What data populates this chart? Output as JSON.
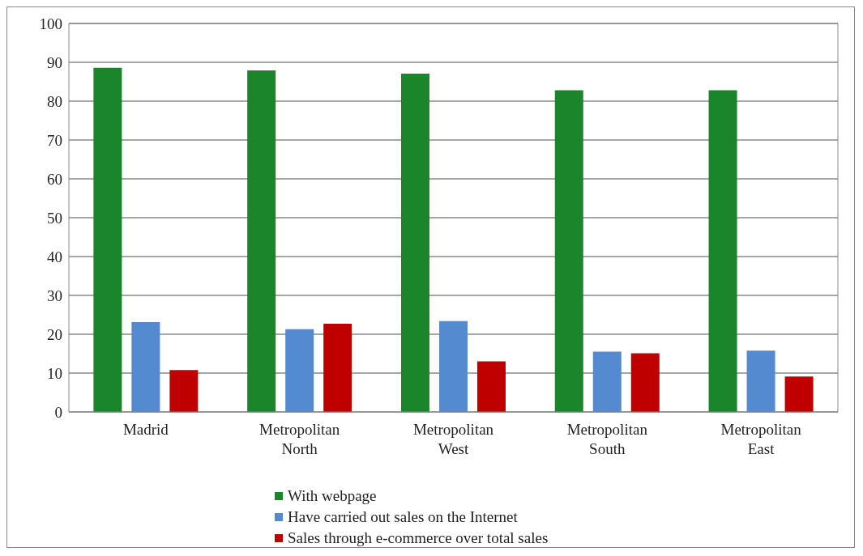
{
  "chart_data": {
    "type": "bar",
    "categories": [
      "Madrid",
      "Metropolitan North",
      "Metropolitan West",
      "Metropolitan South",
      "Metropolitan East"
    ],
    "series": [
      {
        "name": "With webpage",
        "color": "#1a852a",
        "values": [
          88.6,
          87.9,
          87.1,
          82.8,
          82.8
        ]
      },
      {
        "name": "Have carried out sales on the Internet",
        "color": "#538ad0",
        "values": [
          23.1,
          21.3,
          23.4,
          15.5,
          15.8
        ]
      },
      {
        "name": "Sales through e-commerce over total sales",
        "color": "#c00000",
        "values": [
          10.8,
          22.7,
          13.0,
          15.1,
          9.1
        ]
      }
    ],
    "ylim": [
      0,
      100
    ],
    "yticks": [
      0,
      10,
      20,
      30,
      40,
      50,
      60,
      70,
      80,
      90,
      100
    ],
    "grid": "y",
    "legend": "bottom left"
  }
}
